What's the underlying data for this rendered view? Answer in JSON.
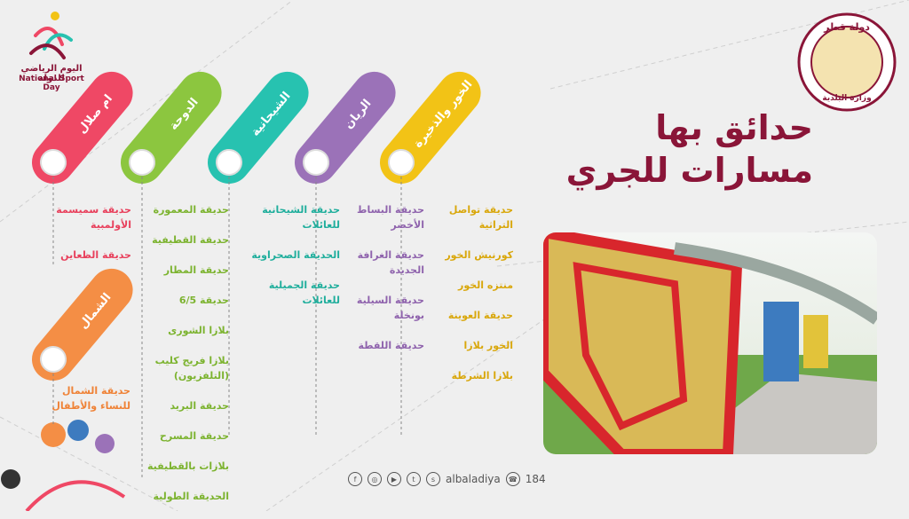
{
  "header": {
    "event_ar": "اليوم الرياضي للدولة",
    "event_en": "National Sport Day",
    "title": [
      "حدائق بها",
      "مسارات للجري"
    ],
    "ministry": [
      "دولة قطر",
      "وزارة البلدية"
    ]
  },
  "regions": [
    {
      "name": "الخور والذخيرة",
      "color": "#f2c316",
      "text_color": "#d9a70b",
      "parks": [
        "حديقة تواصل التراثية",
        "كورنيش الخور",
        "منتزه الخور",
        "حديقة العوينة",
        "الخور بلازا",
        "بلازا الشرطة"
      ]
    },
    {
      "name": "الريان",
      "color": "#9b72b8",
      "text_color": "#8f63ad",
      "parks": [
        "حديقة البساط الأخضر",
        "حديقة الغرافة الجديدة",
        "حديقة السيلية بونخلة",
        "حديقة اللقطة"
      ]
    },
    {
      "name": "الشيحانية",
      "color": "#27c2b0",
      "text_color": "#1fae9c",
      "parks": [
        "حديقة الشيحانية للعائلات",
        "الحديقة الصحراوية",
        "حديقة الجميلية للعائلات"
      ]
    },
    {
      "name": "الدوحة",
      "color": "#8cc63f",
      "text_color": "#7cb32f",
      "parks": [
        "حديقة المعمورة",
        "حديقة القطيفية",
        "حديقة المطار",
        "حديقة 6/5",
        "بلازا الشورى",
        "بلازا فريج كليب (التلفزيون)",
        "حديقة البريد",
        "حديقة المسرح",
        "بلازات بالقطيفية",
        "الحديقة الطولية"
      ]
    },
    {
      "name": "ام صلال",
      "color": "#ef4865",
      "text_color": "#e8405c",
      "parks": [
        "حديقة سميسمة الأولمبية",
        "حديقة الظعاين"
      ]
    },
    {
      "name": "الشمال",
      "color": "#f48e45",
      "text_color": "#ef8236",
      "parks": [
        "حديقة الشمال للنساء والأطفال"
      ]
    }
  ],
  "footer": {
    "handle": "albaladiya",
    "phone": "184"
  }
}
